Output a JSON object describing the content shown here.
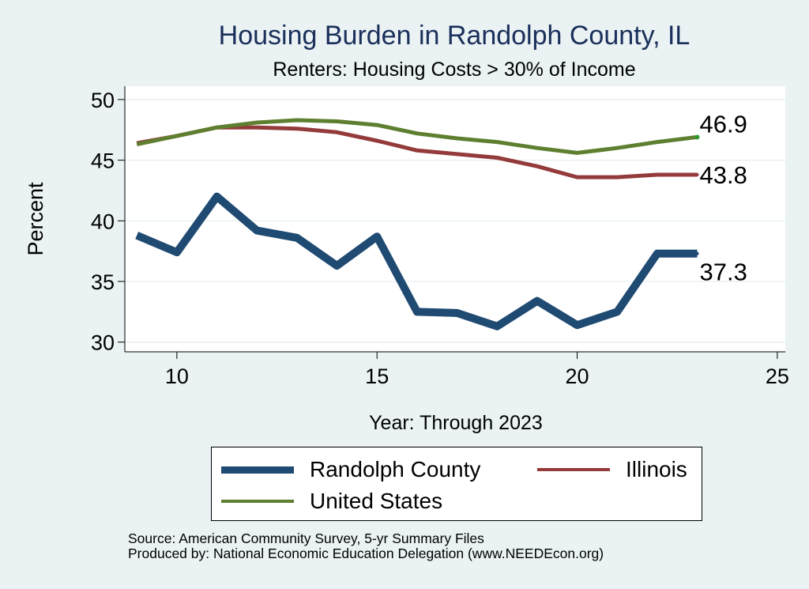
{
  "chart_data": {
    "type": "line",
    "title": "Housing Burden in Randolph County, IL",
    "subtitle": "Renters: Housing Costs > 30% of Income",
    "xlabel": "Year: Through 2023",
    "ylabel": "Percent",
    "xlim": [
      8.7,
      25.2
    ],
    "ylim": [
      29.2,
      51.1
    ],
    "xticks": [
      10,
      15,
      20,
      25
    ],
    "yticks": [
      30,
      35,
      40,
      45,
      50
    ],
    "grid": true,
    "series": [
      {
        "name": "Randolph County",
        "color": "#1f4a72",
        "x": [
          9,
          10,
          11,
          12,
          13,
          14,
          15,
          16,
          17,
          18,
          19,
          20,
          21,
          22,
          23
        ],
        "values": [
          38.8,
          37.4,
          42.0,
          39.2,
          38.6,
          36.3,
          38.7,
          32.5,
          32.4,
          31.3,
          33.4,
          31.4,
          32.5,
          37.3,
          37.3
        ],
        "end_label": "37.3"
      },
      {
        "name": "Illinois",
        "color": "#943a3a",
        "x": [
          9,
          10,
          11,
          12,
          13,
          14,
          15,
          16,
          17,
          18,
          19,
          20,
          21,
          22,
          23
        ],
        "values": [
          46.4,
          47.0,
          47.7,
          47.7,
          47.6,
          47.3,
          46.6,
          45.8,
          45.5,
          45.2,
          44.5,
          43.6,
          43.6,
          43.8,
          43.8
        ],
        "end_label": "43.8"
      },
      {
        "name": "United States",
        "color": "#5e7f2f",
        "x": [
          9,
          10,
          11,
          12,
          13,
          14,
          15,
          16,
          17,
          18,
          19,
          20,
          21,
          22,
          23
        ],
        "values": [
          46.3,
          47.0,
          47.7,
          48.1,
          48.3,
          48.2,
          47.9,
          47.2,
          46.8,
          46.5,
          46.0,
          45.6,
          46.0,
          46.5,
          46.9
        ],
        "end_label": "46.9"
      }
    ]
  },
  "legend": {
    "items": [
      {
        "label": "Randolph County",
        "color": "#1f4a72"
      },
      {
        "label": "Illinois",
        "color": "#943a3a"
      },
      {
        "label": "United States",
        "color": "#5e7f2f"
      }
    ]
  },
  "source": {
    "line1": "Source: American Community Survey, 5-yr Summary Files",
    "line2": "Produced by: National Economic Education Delegation (www.NEEDEcon.org)"
  }
}
